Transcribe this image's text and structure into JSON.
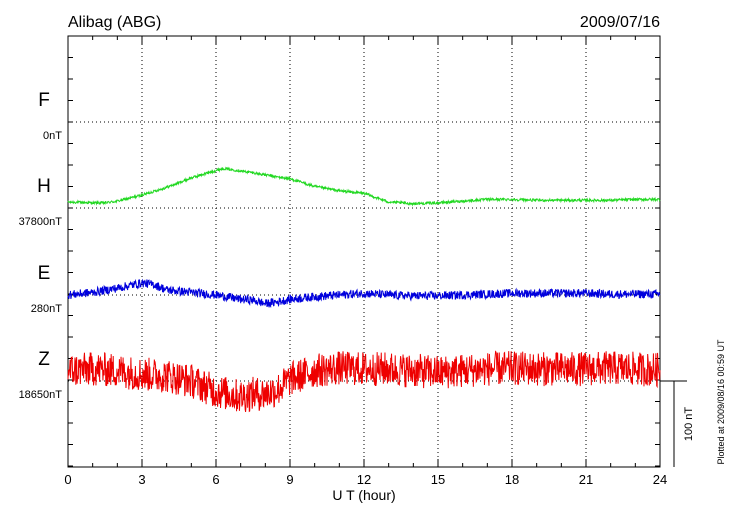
{
  "chart_data": {
    "type": "line",
    "station": "Alibag (ABG)",
    "date": "2009/07/16",
    "xlabel": "U T (hour)",
    "x_ticks": [
      "0",
      "3",
      "6",
      "9",
      "12",
      "15",
      "18",
      "21",
      "24"
    ],
    "xlim": [
      0,
      24
    ],
    "plotted_note": "Plotted at 2009/08/16 00:59 UT",
    "scale_label": "100 nT",
    "scale_nT": 100,
    "grid": "dotted",
    "series": [
      {
        "name": "F",
        "baseline_label": "0nT",
        "color": "#f5a800",
        "offset_nT": 0,
        "noise_nT": 0,
        "values": []
      },
      {
        "name": "H",
        "baseline_label": "37800nT",
        "color": "#22d822",
        "offset_nT": 0,
        "noise_nT": 1.5,
        "values": [
          [
            0,
            7
          ],
          [
            1,
            6
          ],
          [
            1.5,
            6
          ],
          [
            2,
            8
          ],
          [
            3,
            15
          ],
          [
            4,
            24
          ],
          [
            5,
            35
          ],
          [
            5.8,
            42
          ],
          [
            6.3,
            46
          ],
          [
            6.8,
            44
          ],
          [
            7.5,
            41
          ],
          [
            8.5,
            36
          ],
          [
            9,
            34
          ],
          [
            10,
            25
          ],
          [
            11,
            20
          ],
          [
            12,
            17
          ],
          [
            13,
            7
          ],
          [
            13.5,
            6
          ],
          [
            14,
            5
          ],
          [
            15,
            6
          ],
          [
            16,
            8
          ],
          [
            17,
            10
          ],
          [
            18,
            10
          ],
          [
            19,
            9
          ],
          [
            20,
            9
          ],
          [
            21,
            9
          ],
          [
            22,
            9
          ],
          [
            23,
            10
          ],
          [
            24,
            10
          ]
        ]
      },
      {
        "name": "E",
        "baseline_label": "280nT",
        "color": "#0000dd",
        "offset_nT": 0,
        "noise_nT": 5,
        "values": [
          [
            0,
            0
          ],
          [
            1,
            3
          ],
          [
            2,
            8
          ],
          [
            3,
            14
          ],
          [
            3.5,
            12
          ],
          [
            4,
            6
          ],
          [
            5,
            3
          ],
          [
            6,
            0
          ],
          [
            7,
            -5
          ],
          [
            7.5,
            -6
          ],
          [
            8,
            -10
          ],
          [
            8.5,
            -8
          ],
          [
            9,
            -5
          ],
          [
            10,
            -2
          ],
          [
            11,
            0
          ],
          [
            12,
            2
          ],
          [
            13,
            0
          ],
          [
            14,
            -1
          ],
          [
            15,
            -1
          ],
          [
            16,
            0
          ],
          [
            17,
            1
          ],
          [
            18,
            2
          ],
          [
            19,
            2
          ],
          [
            20,
            2
          ],
          [
            21,
            2
          ],
          [
            22,
            1
          ],
          [
            23,
            1
          ],
          [
            24,
            1
          ]
        ]
      },
      {
        "name": "Z",
        "baseline_label": "18650nT",
        "color": "#ee0000",
        "offset_nT": 0,
        "noise_nT": 20,
        "values": [
          [
            0,
            12
          ],
          [
            1,
            14
          ],
          [
            2,
            12
          ],
          [
            3,
            8
          ],
          [
            4,
            6
          ],
          [
            5,
            0
          ],
          [
            6,
            -12
          ],
          [
            7,
            -18
          ],
          [
            7.5,
            -15
          ],
          [
            8,
            -15
          ],
          [
            8.5,
            -10
          ],
          [
            9,
            2
          ],
          [
            10,
            12
          ],
          [
            11,
            15
          ],
          [
            12,
            14
          ],
          [
            13,
            14
          ],
          [
            14,
            12
          ],
          [
            15,
            10
          ],
          [
            16,
            12
          ],
          [
            17,
            14
          ],
          [
            18,
            15
          ],
          [
            19,
            14
          ],
          [
            20,
            14
          ],
          [
            21,
            14
          ],
          [
            22,
            15
          ],
          [
            23,
            14
          ],
          [
            24,
            13
          ]
        ]
      }
    ]
  }
}
